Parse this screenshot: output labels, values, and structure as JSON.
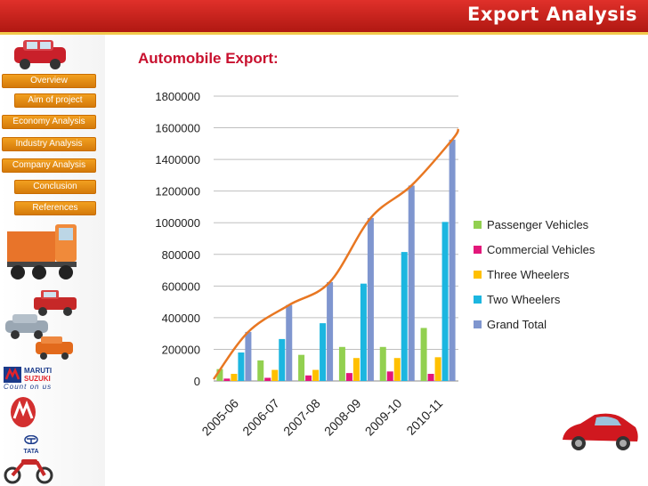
{
  "header": {
    "title": "Export Analysis"
  },
  "sidebar": {
    "items": [
      {
        "label": "Overview"
      },
      {
        "label": "Aim of project"
      },
      {
        "label": "Economy Analysis"
      },
      {
        "label": "Industry Analysis"
      },
      {
        "label": "Company Analysis"
      },
      {
        "label": "Conclusion"
      },
      {
        "label": "References"
      }
    ],
    "logo_maruti": {
      "name": "MARUTI",
      "sub": "SUZUKI",
      "tagline": "Count on us"
    },
    "logo_tata": "TATA"
  },
  "colors": {
    "header": "#c8231c",
    "nav": "#e88e17",
    "title": "#c8102e",
    "passenger": "#92d050",
    "commercial": "#e3177a",
    "three": "#ffc000",
    "two": "#1cb6e0",
    "total": "#7f96cf",
    "trend": "#e87722"
  },
  "chart_data": {
    "type": "bar",
    "title": "Automobile Export:",
    "categories": [
      "2005-06",
      "2006-07",
      "2007-08",
      "2008-09",
      "2009-10",
      "2010-11"
    ],
    "ylim": [
      0,
      1800000
    ],
    "yticks": [
      0,
      200000,
      400000,
      600000,
      800000,
      1000000,
      1200000,
      1400000,
      1600000,
      1800000
    ],
    "grid": true,
    "legend_position": "right",
    "series": [
      {
        "name": "Passenger Vehicles",
        "color": "#92d050",
        "values": [
          75000,
          130000,
          165000,
          215000,
          215000,
          335000
        ]
      },
      {
        "name": "Commercial Vehicles",
        "color": "#e3177a",
        "values": [
          15000,
          20000,
          35000,
          50000,
          60000,
          45000
        ]
      },
      {
        "name": "Three Wheelers",
        "color": "#ffc000",
        "values": [
          45000,
          70000,
          70000,
          145000,
          145000,
          150000
        ]
      },
      {
        "name": "Two Wheelers",
        "color": "#1cb6e0",
        "values": [
          180000,
          265000,
          365000,
          615000,
          815000,
          1005000
        ]
      },
      {
        "name": "Grand Total",
        "color": "#7f96cf",
        "values": [
          310000,
          480000,
          625000,
          1030000,
          1235000,
          1525000
        ]
      }
    ],
    "trendline": {
      "series": "Grand Total",
      "color": "#e87722",
      "style": "smooth"
    }
  }
}
